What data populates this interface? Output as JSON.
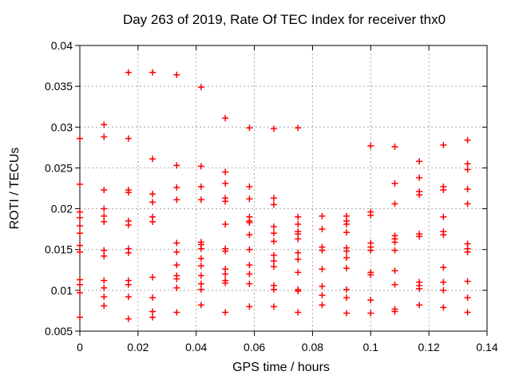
{
  "chart": {
    "title": "Day 263 of 2019, Rate Of TEC Index for receiver thx0",
    "xlabel": "GPS time / hours",
    "ylabel": "ROTI / TECUs"
  },
  "chart_data": {
    "type": "scatter",
    "title": "Day 263 of 2019, Rate Of TEC Index for receiver thx0",
    "xlabel": "GPS time / hours",
    "ylabel": "ROTI / TECUs",
    "xlim": [
      0,
      0.14
    ],
    "ylim": [
      0.005,
      0.04
    ],
    "x_ticks": [
      0,
      0.02,
      0.04,
      0.06,
      0.08,
      0.1,
      0.12,
      0.14
    ],
    "x_tick_labels": [
      "0",
      "0.02",
      "0.04",
      "0.06",
      "0.08",
      "0.1",
      "0.12",
      "0.14"
    ],
    "y_ticks": [
      0.005,
      0.01,
      0.015,
      0.02,
      0.025,
      0.03,
      0.035,
      0.04
    ],
    "y_tick_labels": [
      "0.005",
      "0.01",
      "0.015",
      "0.02",
      "0.025",
      "0.03",
      "0.035",
      "0.04"
    ],
    "grid": true,
    "legend": "none",
    "marker": {
      "shape": "plus",
      "color": "#ff0000",
      "size": 9
    },
    "colors": {
      "marker": "#ff0000",
      "axis": "#000000",
      "grid": "#a8a8a8",
      "background": "#ffffff",
      "text": "#000000"
    },
    "epochs": [
      {
        "t": 0,
        "roti": [
          0.0286,
          0.023,
          0.0196,
          0.0189,
          0.0179,
          0.017,
          0.0155,
          0.0147,
          0.0113,
          0.0107,
          0.0097,
          0.0067
        ]
      },
      {
        "t": 0.0083,
        "roti": [
          0.0303,
          0.0288,
          0.0223,
          0.02,
          0.0191,
          0.0184,
          0.0149,
          0.0142,
          0.0112,
          0.0103,
          0.0092,
          0.0081
        ]
      },
      {
        "t": 0.0167,
        "roti": [
          0.0367,
          0.0286,
          0.0223,
          0.022,
          0.0185,
          0.018,
          0.0151,
          0.0146,
          0.0112,
          0.0107,
          0.0092,
          0.0065
        ]
      },
      {
        "t": 0.025,
        "roti": [
          0.0367,
          0.0261,
          0.0218,
          0.0208,
          0.019,
          0.0184,
          0.0116,
          0.0091,
          0.0074,
          0.0067
        ]
      },
      {
        "t": 0.0333,
        "roti": [
          0.0364,
          0.0253,
          0.0226,
          0.0211,
          0.0158,
          0.0147,
          0.0131,
          0.0118,
          0.0114,
          0.0103,
          0.0073
        ]
      },
      {
        "t": 0.0417,
        "roti": [
          0.0349,
          0.0252,
          0.0227,
          0.0211,
          0.0159,
          0.0156,
          0.0151,
          0.0139,
          0.013,
          0.0118,
          0.0108,
          0.0101,
          0.0082
        ]
      },
      {
        "t": 0.05,
        "roti": [
          0.0311,
          0.0245,
          0.0231,
          0.0213,
          0.0209,
          0.0181,
          0.0151,
          0.0148,
          0.0126,
          0.012,
          0.0112,
          0.0109,
          0.0073
        ]
      },
      {
        "t": 0.0583,
        "roti": [
          0.0299,
          0.0227,
          0.0212,
          0.019,
          0.0185,
          0.0183,
          0.0168,
          0.015,
          0.0131,
          0.012,
          0.0108,
          0.008
        ]
      },
      {
        "t": 0.0667,
        "roti": [
          0.0298,
          0.0213,
          0.0205,
          0.0178,
          0.017,
          0.016,
          0.0143,
          0.0136,
          0.0129,
          0.0106,
          0.0101,
          0.008
        ]
      },
      {
        "t": 0.075,
        "roti": [
          0.0299,
          0.019,
          0.0181,
          0.0172,
          0.0169,
          0.0163,
          0.0146,
          0.0138,
          0.0122,
          0.0101,
          0.0099,
          0.0073
        ]
      },
      {
        "t": 0.0833,
        "roti": [
          0.0191,
          0.0175,
          0.0153,
          0.0149,
          0.0126,
          0.0105,
          0.0094,
          0.0082
        ]
      },
      {
        "t": 0.0917,
        "roti": [
          0.0191,
          0.0185,
          0.0181,
          0.0171,
          0.0152,
          0.0148,
          0.014,
          0.0127,
          0.0101,
          0.0091,
          0.0072
        ]
      },
      {
        "t": 0.1,
        "roti": [
          0.0277,
          0.0196,
          0.0192,
          0.0158,
          0.0153,
          0.0149,
          0.0122,
          0.0119,
          0.0088,
          0.0072
        ]
      },
      {
        "t": 0.1083,
        "roti": [
          0.0276,
          0.0231,
          0.0206,
          0.0167,
          0.0163,
          0.0159,
          0.0149,
          0.0124,
          0.0107,
          0.0077,
          0.0074
        ]
      },
      {
        "t": 0.1167,
        "roti": [
          0.0258,
          0.0238,
          0.0221,
          0.0217,
          0.0169,
          0.0166,
          0.011,
          0.0106,
          0.0102,
          0.0082
        ]
      },
      {
        "t": 0.125,
        "roti": [
          0.0278,
          0.0227,
          0.0223,
          0.019,
          0.0172,
          0.0168,
          0.0128,
          0.011,
          0.01,
          0.0079
        ]
      },
      {
        "t": 0.1333,
        "roti": [
          0.0284,
          0.0255,
          0.0248,
          0.0224,
          0.0206,
          0.0157,
          0.0151,
          0.0147,
          0.0111,
          0.0091,
          0.0073
        ]
      }
    ]
  }
}
